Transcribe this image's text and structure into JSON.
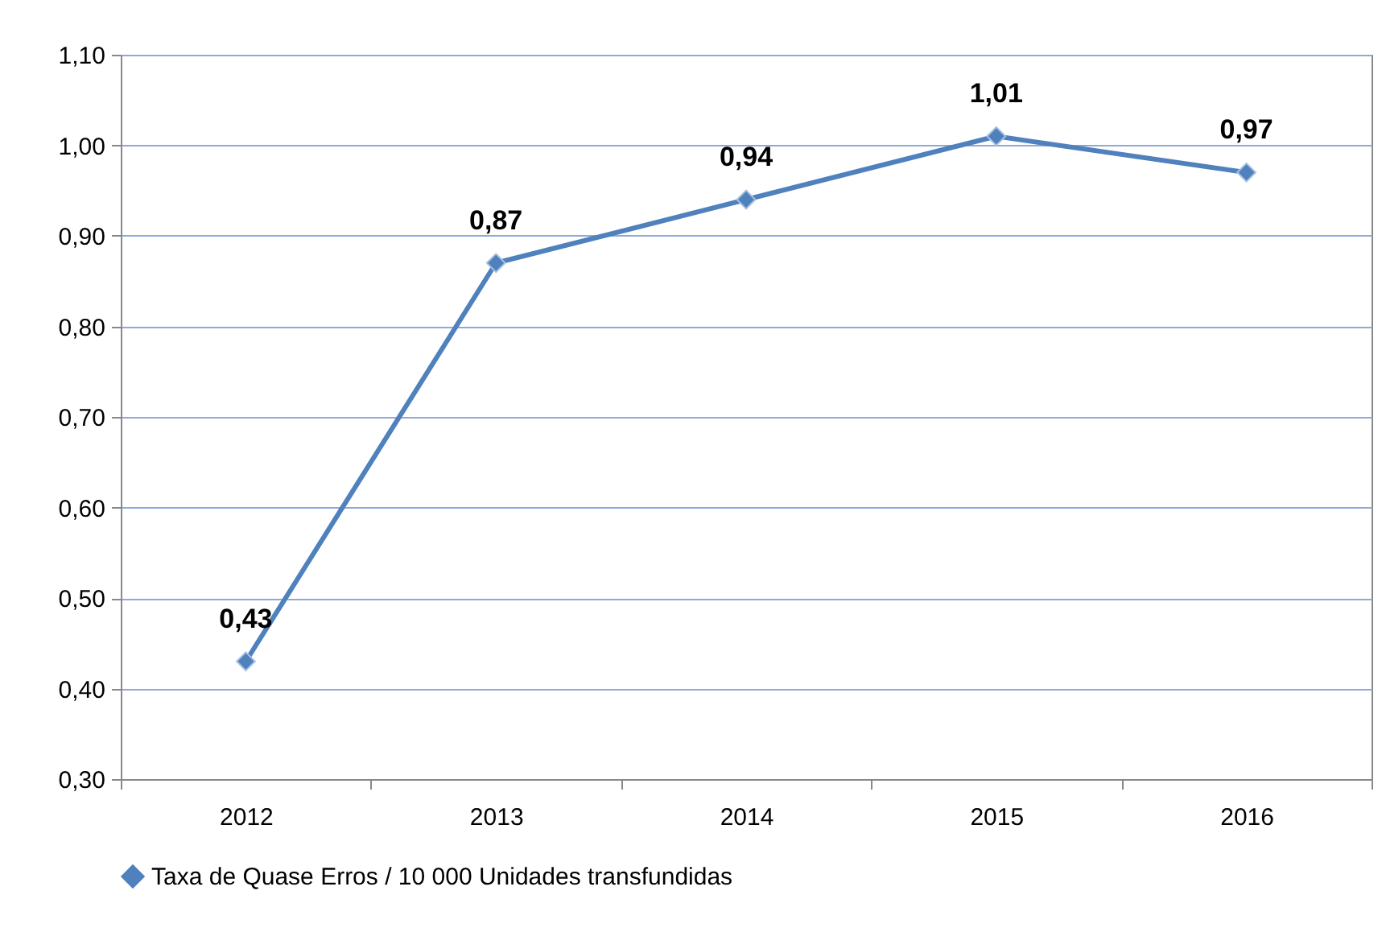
{
  "chart_data": {
    "type": "line",
    "categories": [
      "2012",
      "2013",
      "2014",
      "2015",
      "2016"
    ],
    "series": [
      {
        "name": "Taxa de Quase Erros / 10 000 Unidades transfundidas",
        "color": "#4f81bd",
        "values": [
          0.43,
          0.87,
          0.94,
          1.01,
          0.97
        ],
        "value_labels": [
          "0,43",
          "0,87",
          "0,94",
          "1,01",
          "0,97"
        ]
      }
    ],
    "ylim": [
      0.3,
      1.1
    ],
    "yticks": [
      {
        "value": 0.3,
        "label": "0,30"
      },
      {
        "value": 0.4,
        "label": "0,40"
      },
      {
        "value": 0.5,
        "label": "0,50"
      },
      {
        "value": 0.6,
        "label": "0,60"
      },
      {
        "value": 0.7,
        "label": "0,70"
      },
      {
        "value": 0.8,
        "label": "0,80"
      },
      {
        "value": 0.9,
        "label": "0,90"
      },
      {
        "value": 1.0,
        "label": "1,00"
      },
      {
        "value": 1.1,
        "label": "1,10"
      }
    ],
    "grid": "y",
    "legend": "bottom",
    "marker": "diamond",
    "line_style": "solid"
  }
}
